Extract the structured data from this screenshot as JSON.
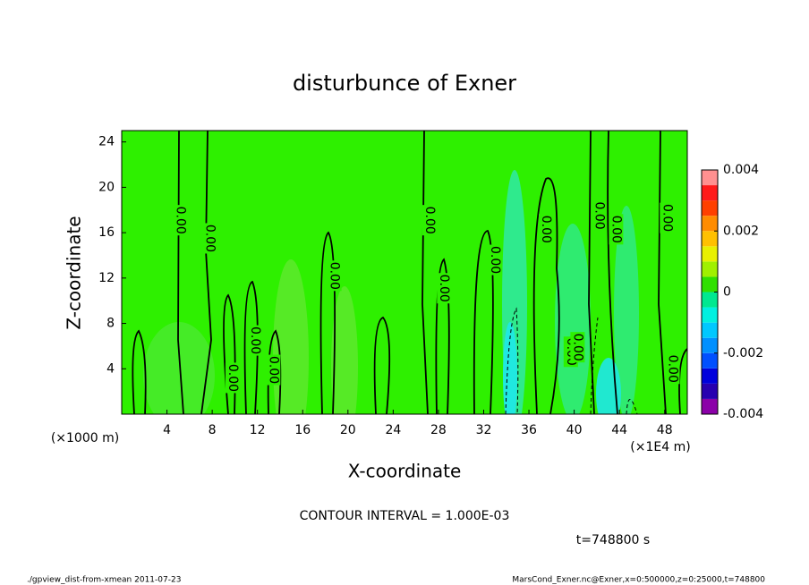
{
  "chart_data": {
    "type": "contour",
    "title": "disturbunce of Exner",
    "x_label": "X-coordinate",
    "y_label": "Z-coordinate",
    "x_unit_label": "(×1E4 m)",
    "y_unit_label": "(×1000 m)",
    "xlim": [
      0,
      50
    ],
    "ylim": [
      0,
      25
    ],
    "xticks": [
      4,
      8,
      12,
      16,
      20,
      24,
      28,
      32,
      36,
      40,
      44,
      48
    ],
    "yticks": [
      4,
      8,
      12,
      16,
      20,
      24
    ],
    "clim": [
      -0.004,
      0.004
    ],
    "cticks": [
      -0.004,
      -0.002,
      0,
      0.002,
      0.004
    ],
    "colors": [
      "#8b00a8",
      "#2800b0",
      "#0000dc",
      "#0050ff",
      "#0090ff",
      "#00c8ff",
      "#00f0e0",
      "#00e890",
      "#30e000",
      "#a0f000",
      "#e8f000",
      "#ffc000",
      "#ff8c00",
      "#ff4000",
      "#ff1a1a",
      "#ff9090"
    ],
    "contour_labels": [
      {
        "text": "0.00",
        "x": 5.2,
        "y": 17.1
      },
      {
        "text": "0.00",
        "x": 7.8,
        "y": 15.5
      },
      {
        "text": "0.00",
        "x": 9.8,
        "y": 3.2
      },
      {
        "text": "0.00",
        "x": 11.8,
        "y": 6.5
      },
      {
        "text": "0.00",
        "x": 13.4,
        "y": 3.9
      },
      {
        "text": "0.00",
        "x": 18.8,
        "y": 12.2
      },
      {
        "text": "0.00",
        "x": 27.2,
        "y": 17.1
      },
      {
        "text": "0.00",
        "x": 28.5,
        "y": 11.1
      },
      {
        "text": "0.00",
        "x": 33.0,
        "y": 13.6
      },
      {
        "text": "0.00",
        "x": 37.5,
        "y": 16.3
      },
      {
        "text": "0.00",
        "x": 39.7,
        "y": 5.5
      },
      {
        "text": "0.00",
        "x": 40.3,
        "y": 5.9
      },
      {
        "text": "0.00",
        "x": 42.2,
        "y": 17.5
      },
      {
        "text": "0.00",
        "x": 43.7,
        "y": 16.3
      },
      {
        "text": "0.00",
        "x": 48.2,
        "y": 17.3
      },
      {
        "text": "0.00",
        "x": 48.7,
        "y": 4.0
      }
    ],
    "contour_interval": "CONTOUR INTERVAL = 1.000E-03",
    "time_label": "t=748800 s",
    "footer_left": "./gpview_dist-from-xmean  2011-07-23",
    "footer_right": "MarsCond_Exner.nc@Exner,x=0:500000,z=0:25000,t=748800"
  }
}
